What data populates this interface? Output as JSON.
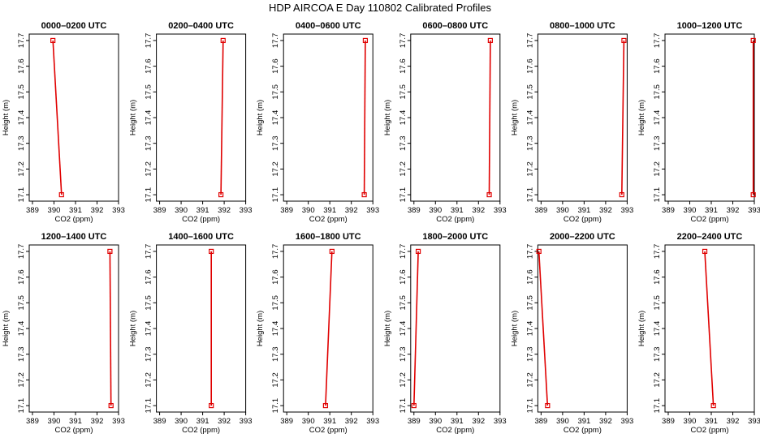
{
  "title": "HDP AIRCOA E  Day 110802  Calibrated Profiles",
  "colors": {
    "series": "#e00000",
    "frame": "#000000",
    "background": "#ffffff"
  },
  "chart_data": [
    {
      "type": "line",
      "title": "0000–0200 UTC",
      "x": [
        390.35,
        389.95
      ],
      "y": [
        17.1,
        17.7
      ]
    },
    {
      "type": "line",
      "title": "0200–0400 UTC",
      "x": [
        391.85,
        391.95
      ],
      "y": [
        17.1,
        17.7
      ]
    },
    {
      "type": "line",
      "title": "0400–0600 UTC",
      "x": [
        392.6,
        392.65
      ],
      "y": [
        17.1,
        17.7
      ]
    },
    {
      "type": "line",
      "title": "0600–0800 UTC",
      "x": [
        392.5,
        392.55
      ],
      "y": [
        17.1,
        17.7
      ]
    },
    {
      "type": "line",
      "title": "0800–1000 UTC",
      "x": [
        392.75,
        392.85
      ],
      "y": [
        17.1,
        17.7
      ]
    },
    {
      "type": "line",
      "title": "1000–1200 UTC",
      "x": [
        392.95,
        392.95
      ],
      "y": [
        17.1,
        17.7
      ]
    },
    {
      "type": "line",
      "title": "1200–1400 UTC",
      "x": [
        392.65,
        392.6
      ],
      "y": [
        17.1,
        17.7
      ]
    },
    {
      "type": "line",
      "title": "1400–1600 UTC",
      "x": [
        391.4,
        391.4
      ],
      "y": [
        17.1,
        17.7
      ]
    },
    {
      "type": "line",
      "title": "1600–1800 UTC",
      "x": [
        390.8,
        391.1
      ],
      "y": [
        17.1,
        17.7
      ]
    },
    {
      "type": "line",
      "title": "1800–2000 UTC",
      "x": [
        389.0,
        389.2
      ],
      "y": [
        17.1,
        17.7
      ]
    },
    {
      "type": "line",
      "title": "2000–2200 UTC",
      "x": [
        389.3,
        388.9
      ],
      "y": [
        17.1,
        17.7
      ]
    },
    {
      "type": "line",
      "title": "2200–2400 UTC",
      "x": [
        391.1,
        390.7
      ],
      "y": [
        17.1,
        17.7
      ]
    }
  ],
  "axes": {
    "xlabel": "CO2 (ppm)",
    "ylabel": "Height (m)",
    "xlim": [
      388.85,
      393.0
    ],
    "ylim": [
      17.075,
      17.725
    ],
    "xticks": [
      389,
      390,
      391,
      392,
      393
    ],
    "yticks": [
      "17.1",
      "17.2",
      "17.3",
      "17.4",
      "17.5",
      "17.6",
      "17.7"
    ]
  }
}
